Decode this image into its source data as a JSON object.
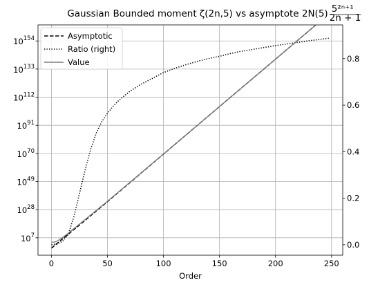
{
  "chart_data": {
    "type": "line",
    "title": {
      "main": "Gaussian Bounded moment ζ(2n,5) vs asymptote 2N(5)",
      "fraction_numerator": "5²ⁿ⁺¹",
      "fraction_denominator": "2n + 1"
    },
    "xlabel": "Order",
    "ylabel_left": "",
    "ylabel_right": "",
    "xlim": [
      -12,
      260
    ],
    "x_ticks": [
      0,
      50,
      100,
      150,
      200,
      250
    ],
    "ylim_left_log10": [
      -6,
      166
    ],
    "y_left_ticks_log10": [
      7,
      28,
      49,
      70,
      91,
      112,
      133,
      154
    ],
    "y_left_tick_base": "10",
    "ylim_right": [
      -0.045,
      0.945
    ],
    "y_right_ticks": [
      0.0,
      0.2,
      0.4,
      0.6,
      0.8
    ],
    "y_right_tick_labels": [
      "0.0",
      "0.2",
      "0.4",
      "0.6",
      "0.8"
    ],
    "grid": true,
    "legend_position": "upper-left",
    "series": [
      {
        "name": "Asymptotic",
        "axis": "left",
        "style": "dashed",
        "color": "#000000",
        "x": [
          0,
          10,
          20,
          30,
          50,
          100,
          150,
          200,
          248
        ],
        "log10_y": [
          -0.7,
          6.2,
          13.1,
          20.0,
          34.0,
          69.5,
          105.0,
          140.4,
          174.5
        ]
      },
      {
        "name": "Ratio (right)",
        "axis": "right",
        "style": "dotted",
        "color": "#000000",
        "x": [
          0,
          5,
          10,
          15,
          20,
          25,
          30,
          35,
          40,
          45,
          50,
          55,
          60,
          70,
          80,
          90,
          100,
          110,
          120,
          130,
          140,
          150,
          160,
          170,
          180,
          190,
          200,
          210,
          220,
          230,
          240,
          248
        ],
        "y": [
          0.0,
          0.003,
          0.015,
          0.045,
          0.12,
          0.22,
          0.32,
          0.41,
          0.48,
          0.53,
          0.565,
          0.595,
          0.62,
          0.66,
          0.69,
          0.715,
          0.74,
          0.758,
          0.774,
          0.788,
          0.8,
          0.81,
          0.822,
          0.832,
          0.84,
          0.848,
          0.856,
          0.863,
          0.87,
          0.877,
          0.883,
          0.888
        ]
      },
      {
        "name": "Value",
        "axis": "left",
        "style": "solid",
        "color": "#7f7f7f",
        "x": [
          0,
          3,
          6,
          10,
          15,
          20,
          30,
          50,
          100,
          150,
          200,
          248
        ],
        "log10_y": [
          3.7,
          3.8,
          5.0,
          7.2,
          10.4,
          13.8,
          20.6,
          34.3,
          69.6,
          105.0,
          140.4,
          174.5
        ]
      }
    ]
  }
}
